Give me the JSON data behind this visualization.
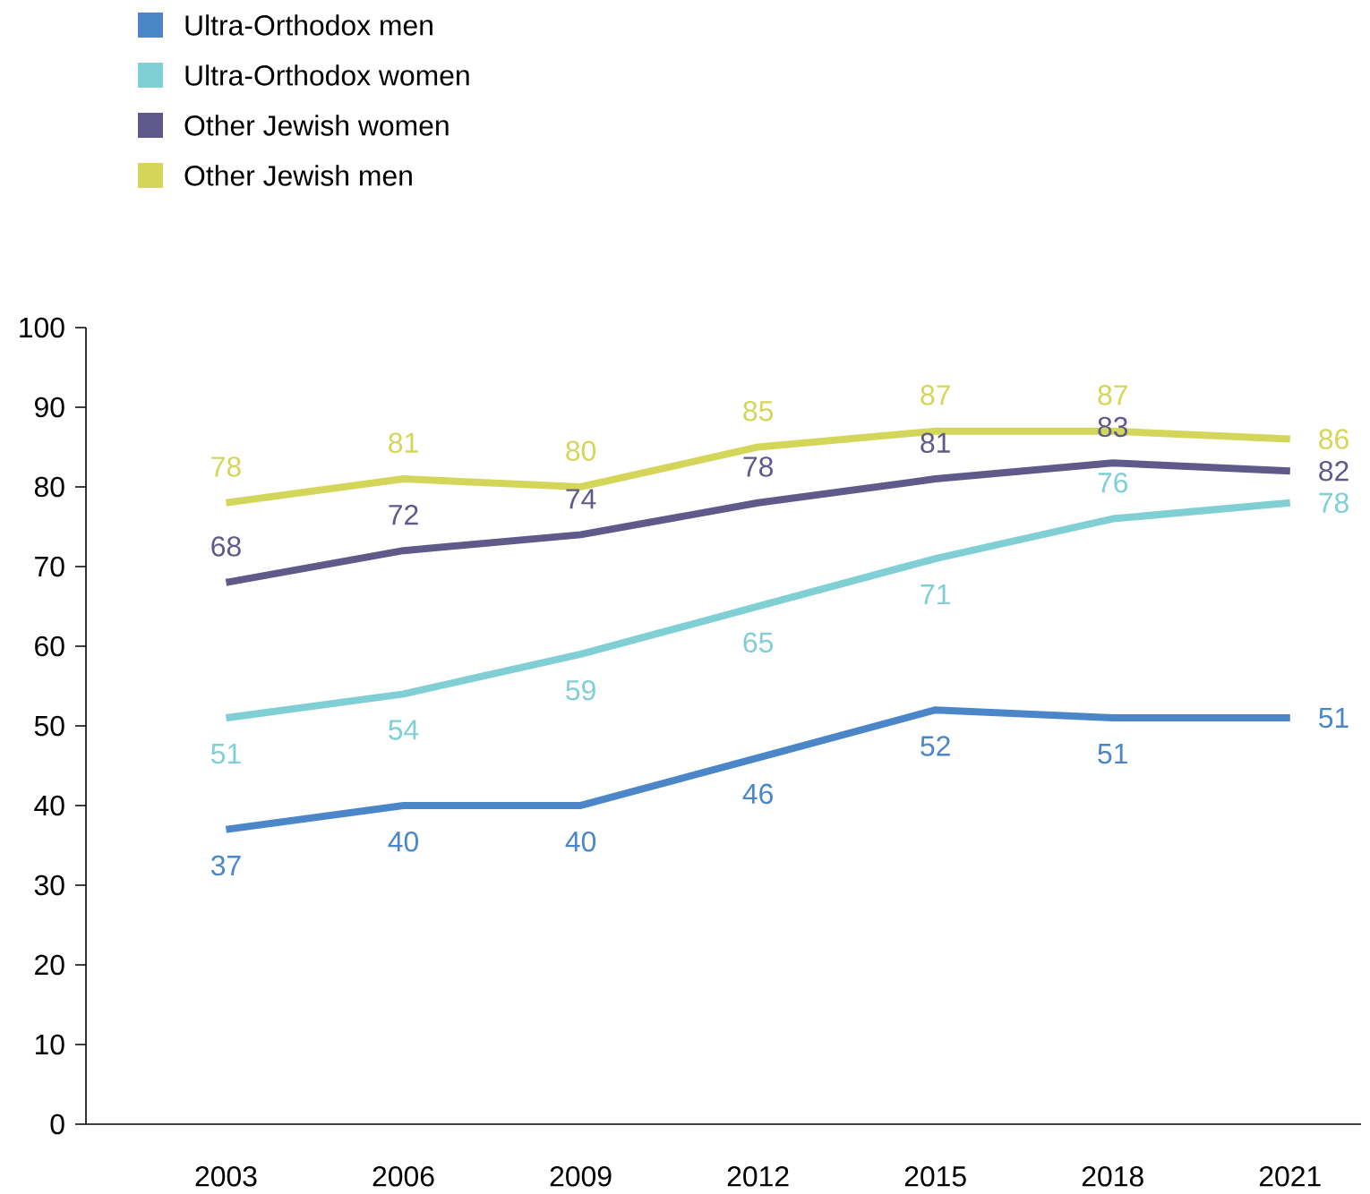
{
  "chart_data": {
    "type": "line",
    "categories": [
      "2003",
      "2006",
      "2009",
      "2012",
      "2015",
      "2018",
      "2021"
    ],
    "series": [
      {
        "name": "Ultra-Orthodox men",
        "color": "#4a86c8",
        "values": [
          37,
          40,
          40,
          46,
          52,
          51,
          51
        ]
      },
      {
        "name": "Ultra-Orthodox women",
        "color": "#7fcfd4",
        "values": [
          51,
          54,
          59,
          65,
          71,
          76,
          78
        ]
      },
      {
        "name": "Other Jewish women",
        "color": "#5f5a8a",
        "values": [
          68,
          72,
          74,
          78,
          81,
          83,
          82
        ]
      },
      {
        "name": "Other Jewish men",
        "color": "#d4d65a",
        "values": [
          78,
          81,
          80,
          85,
          87,
          87,
          86
        ]
      }
    ],
    "ylim": [
      0,
      100
    ],
    "yticks": [
      0,
      10,
      20,
      30,
      40,
      50,
      60,
      70,
      80,
      90,
      100
    ],
    "data_labels": true,
    "legend": "top left",
    "grid": false,
    "marker": "none",
    "line_style": "solid"
  }
}
